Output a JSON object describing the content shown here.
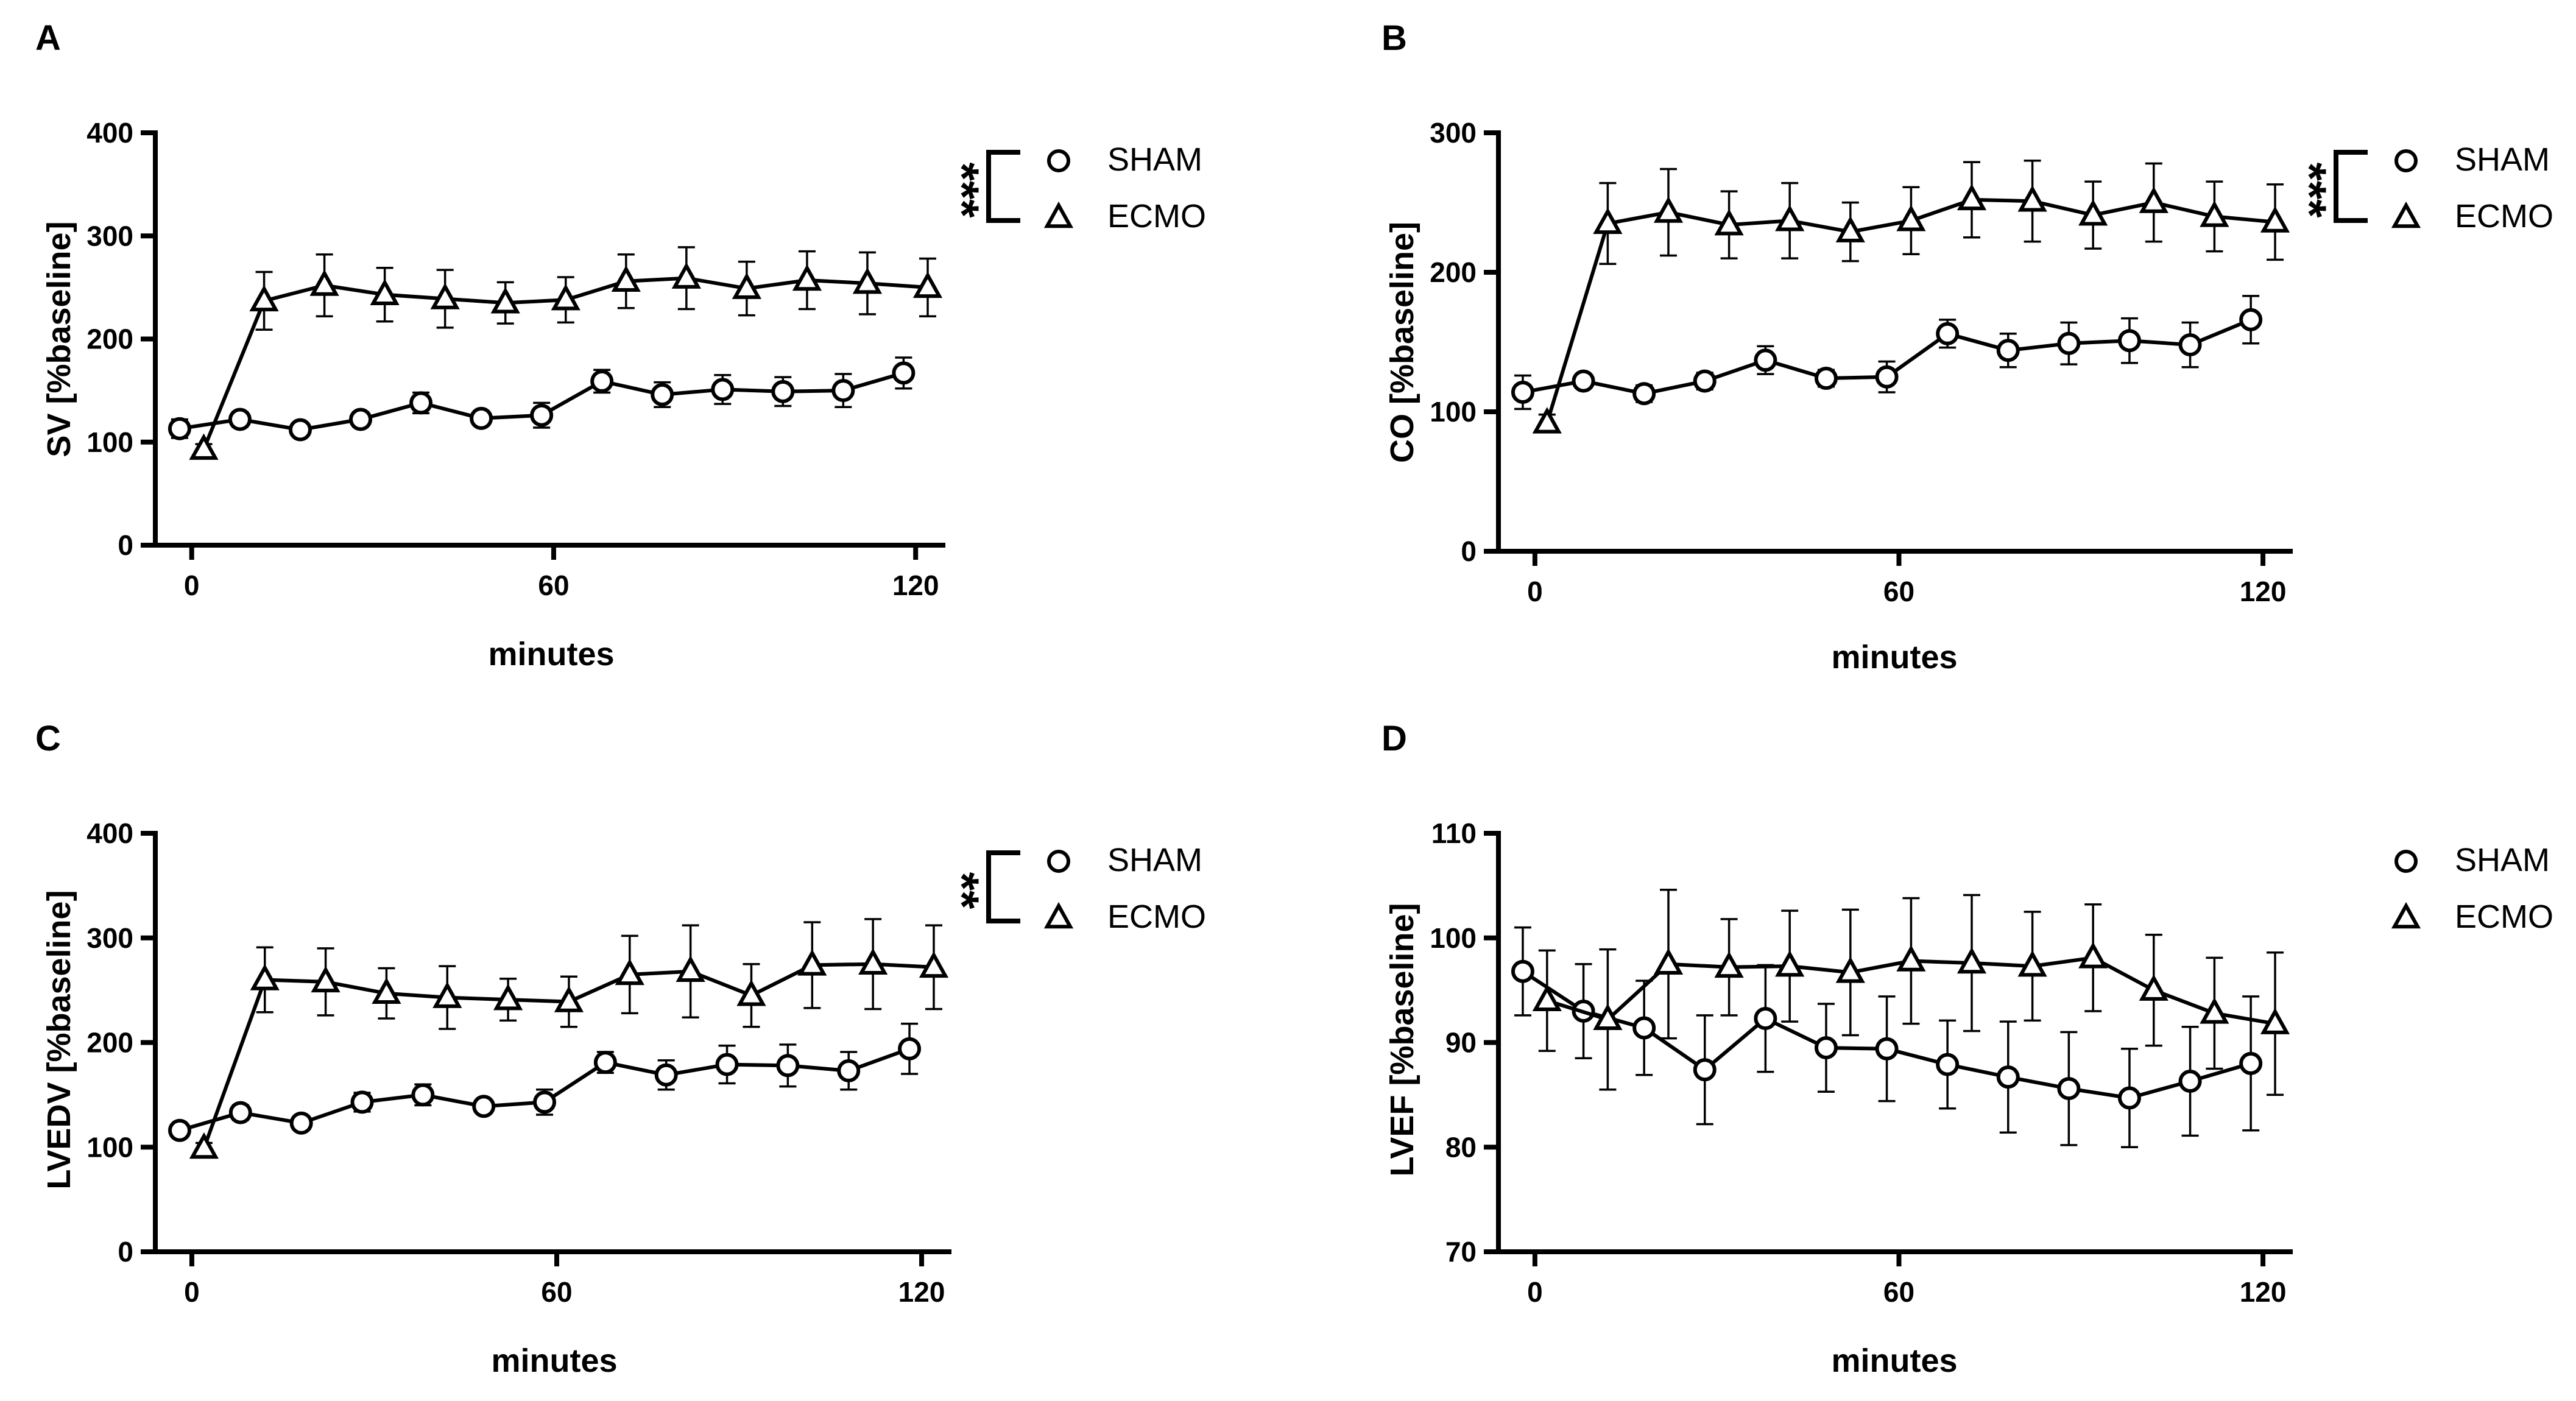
{
  "chart_data": [
    {
      "type": "line",
      "panel": "A",
      "ylabel": "SV [%baseline]",
      "xlabel": "minutes",
      "xlim": [
        -3,
        122
      ],
      "ylim": [
        0,
        400
      ],
      "xticks": [
        0,
        60,
        120
      ],
      "yticks": [
        0,
        100,
        200,
        300,
        400
      ],
      "significance": "***",
      "legend": [
        "SHAM",
        "ECMO"
      ],
      "legend_position": "top-right",
      "series": [
        {
          "name": "SHAM",
          "marker": "circle",
          "x": [
            -2,
            8,
            18,
            28,
            38,
            48,
            58,
            68,
            78,
            88,
            98,
            108,
            118
          ],
          "y": [
            113,
            122,
            112,
            122,
            138,
            123,
            126,
            159,
            146,
            151,
            149,
            150,
            167
          ],
          "err": [
            9,
            7,
            6,
            7,
            10,
            7,
            12,
            11,
            12,
            14,
            14,
            16,
            15
          ]
        },
        {
          "name": "ECMO",
          "marker": "triangle",
          "x": [
            2,
            12,
            22,
            32,
            42,
            52,
            62,
            72,
            82,
            92,
            102,
            112,
            122
          ],
          "y": [
            93,
            237,
            252,
            243,
            239,
            235,
            238,
            256,
            259,
            249,
            257,
            254,
            250
          ],
          "err": [
            5,
            28,
            30,
            26,
            28,
            20,
            22,
            26,
            30,
            26,
            28,
            30,
            28
          ]
        }
      ]
    },
    {
      "type": "line",
      "panel": "B",
      "ylabel": "CO [%baseline]",
      "xlabel": "minutes",
      "xlim": [
        -3,
        122
      ],
      "ylim": [
        0,
        300
      ],
      "xticks": [
        0,
        60,
        120
      ],
      "yticks": [
        0,
        100,
        200,
        300
      ],
      "significance": "***",
      "legend": [
        "SHAM",
        "ECMO"
      ],
      "legend_position": "top-right",
      "series": [
        {
          "name": "SHAM",
          "marker": "circle",
          "x": [
            -2,
            8,
            18,
            28,
            38,
            48,
            58,
            68,
            78,
            88,
            98,
            108,
            118
          ],
          "y": [
            114,
            122,
            113,
            122,
            137,
            124,
            125,
            156,
            144,
            149,
            151,
            148,
            166
          ],
          "err": [
            12,
            5,
            6,
            6,
            10,
            6,
            11,
            10,
            12,
            15,
            16,
            16,
            17
          ]
        },
        {
          "name": "ECMO",
          "marker": "triangle",
          "x": [
            2,
            12,
            22,
            32,
            42,
            52,
            62,
            72,
            82,
            92,
            102,
            112,
            122
          ],
          "y": [
            92,
            235,
            243,
            234,
            237,
            229,
            237,
            252,
            251,
            241,
            250,
            240,
            236
          ],
          "err": [
            6,
            29,
            31,
            24,
            27,
            21,
            24,
            27,
            29,
            24,
            28,
            25,
            27
          ]
        }
      ]
    },
    {
      "type": "line",
      "panel": "C",
      "ylabel": "LVEDV [%baseline]",
      "xlabel": "minutes",
      "xlim": [
        -3,
        122
      ],
      "ylim": [
        0,
        400
      ],
      "xticks": [
        0,
        60,
        120
      ],
      "yticks": [
        0,
        100,
        200,
        300,
        400
      ],
      "significance": "**",
      "legend": [
        "SHAM",
        "ECMO"
      ],
      "legend_position": "top-right",
      "series": [
        {
          "name": "SHAM",
          "marker": "circle",
          "x": [
            -2,
            8,
            18,
            28,
            38,
            48,
            58,
            68,
            78,
            88,
            98,
            108,
            118
          ],
          "y": [
            116,
            133,
            123,
            143,
            150,
            139,
            143,
            181,
            169,
            179,
            178,
            173,
            194
          ],
          "err": [
            5,
            7,
            5,
            9,
            10,
            5,
            12,
            10,
            14,
            18,
            20,
            18,
            24
          ]
        },
        {
          "name": "ECMO",
          "marker": "triangle",
          "x": [
            2,
            12,
            22,
            32,
            42,
            52,
            62,
            72,
            82,
            92,
            102,
            112,
            122
          ],
          "y": [
            99,
            260,
            258,
            247,
            243,
            241,
            239,
            265,
            268,
            245,
            274,
            275,
            272
          ],
          "err": [
            5,
            31,
            32,
            24,
            30,
            20,
            24,
            37,
            44,
            30,
            41,
            43,
            40
          ]
        }
      ]
    },
    {
      "type": "line",
      "panel": "D",
      "ylabel": "LVEF [%baseline]",
      "xlabel": "minutes",
      "xlim": [
        -3,
        122
      ],
      "ylim": [
        70,
        110
      ],
      "xticks": [
        0,
        60,
        120
      ],
      "yticks": [
        70,
        80,
        90,
        100,
        110
      ],
      "significance": "",
      "legend": [
        "SHAM",
        "ECMO"
      ],
      "legend_position": "top-right",
      "series": [
        {
          "name": "SHAM",
          "marker": "circle",
          "x": [
            -2,
            8,
            18,
            28,
            38,
            48,
            58,
            68,
            78,
            88,
            98,
            108,
            118
          ],
          "y": [
            96.8,
            93.0,
            91.4,
            87.4,
            92.3,
            89.5,
            89.4,
            87.9,
            86.7,
            85.6,
            84.7,
            86.3,
            88.0
          ],
          "err": [
            4.2,
            4.5,
            4.5,
            5.2,
            5.1,
            4.2,
            5.0,
            4.2,
            5.3,
            5.4,
            4.7,
            5.2,
            6.4
          ]
        },
        {
          "name": "ECMO",
          "marker": "triangle",
          "x": [
            2,
            12,
            22,
            32,
            42,
            52,
            62,
            72,
            82,
            92,
            102,
            112,
            122
          ],
          "y": [
            94.0,
            92.2,
            97.5,
            97.2,
            97.3,
            96.7,
            97.8,
            97.6,
            97.3,
            98.1,
            95.0,
            92.8,
            91.8
          ],
          "err": [
            4.8,
            6.7,
            7.1,
            4.6,
            5.3,
            6.0,
            6.0,
            6.5,
            5.2,
            5.1,
            5.3,
            5.3,
            6.8
          ]
        }
      ]
    }
  ]
}
